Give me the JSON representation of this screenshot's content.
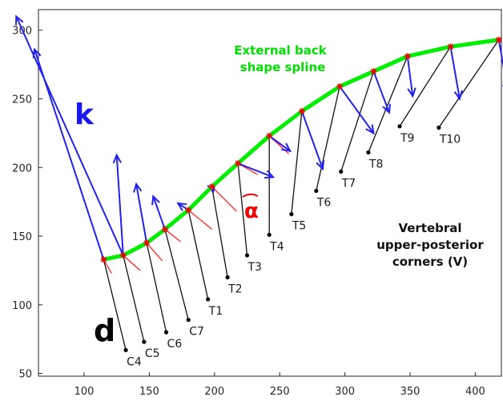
{
  "chart_data": {
    "type": "line",
    "xlim": [
      65,
      420
    ],
    "ylim": [
      48,
      315
    ],
    "x_ticks": [
      100,
      150,
      200,
      250,
      300,
      350,
      400
    ],
    "y_ticks": [
      50,
      100,
      150,
      200,
      250,
      300
    ],
    "grid": false,
    "spline": {
      "label": "External back shape spline",
      "label_lines": [
        "External back",
        "shape spline"
      ],
      "color": "#00ee00",
      "x": [
        115,
        130,
        148,
        162,
        180,
        198,
        218,
        242,
        267,
        296,
        322,
        348,
        381,
        418
      ],
      "y": [
        133,
        136,
        145,
        155,
        169,
        186,
        203,
        223,
        241,
        259,
        270,
        281,
        288,
        293
      ]
    },
    "corners": {
      "label_lines": [
        "Vertebral",
        "upper-posterior",
        "corners (V)"
      ],
      "names": [
        "C4",
        "C5",
        "C6",
        "C7",
        "T1",
        "T2",
        "T3",
        "T4",
        "T5",
        "T6",
        "T7",
        "T8",
        "T9",
        "T10"
      ],
      "x": [
        132,
        146,
        163,
        180,
        195,
        210,
        225,
        242,
        259,
        278,
        297,
        318,
        342,
        372
      ],
      "y": [
        67,
        73,
        80,
        89,
        104,
        120,
        136,
        151,
        166,
        183,
        197,
        211,
        230,
        229
      ]
    },
    "normal_vectors": {
      "color": "#2222ee",
      "tips": [
        [
          62,
          286
        ],
        [
          125,
          209
        ],
        [
          140,
          188
        ],
        [
          153,
          179
        ],
        [
          172,
          174
        ],
        [
          199,
          182
        ],
        [
          245,
          193
        ],
        [
          258,
          212
        ],
        [
          283,
          199
        ],
        [
          322,
          225
        ],
        [
          334,
          240
        ],
        [
          352,
          252
        ],
        [
          388,
          250
        ],
        [
          425,
          255
        ]
      ]
    },
    "long_vector": {
      "from": [
        130,
        136
      ],
      "to": [
        48,
        310
      ],
      "label": "k"
    },
    "red_segments": [
      [
        [
          115,
          133
        ],
        [
          121,
          123
        ]
      ],
      [
        [
          130,
          136
        ],
        [
          143,
          125
        ]
      ],
      [
        [
          148,
          145
        ],
        [
          160,
          132
        ]
      ],
      [
        [
          162,
          155
        ],
        [
          174,
          146
        ]
      ],
      [
        [
          180,
          169
        ],
        [
          198,
          155
        ]
      ],
      [
        [
          198,
          186
        ],
        [
          217,
          168
        ]
      ],
      [
        [
          218,
          203
        ],
        [
          233,
          195
        ]
      ],
      [
        [
          242,
          223
        ],
        [
          257,
          210
        ]
      ]
    ],
    "alpha": {
      "label": "α",
      "color": "#ee0000",
      "x": 233,
      "y": 174
    },
    "d_label": {
      "text": "d",
      "x": 113,
      "y": 98
    }
  }
}
